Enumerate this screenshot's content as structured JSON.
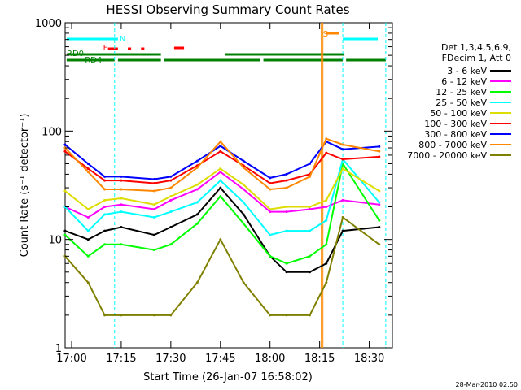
{
  "chart_data": {
    "type": "line",
    "title": "HESSI Observing Summary Count Rates",
    "xlabel": "Start Time (26-Jan-07 16:58:02)",
    "ylabel": "Count Rate (s⁻¹ detector⁻¹)",
    "ylim": [
      1,
      1000
    ],
    "yscale": "log",
    "xlim": [
      "16:58:02",
      "18:37:00"
    ],
    "x_ticks": [
      "17:00",
      "17:15",
      "17:30",
      "17:45",
      "18:00",
      "18:15",
      "18:30"
    ],
    "y_ticks": [
      "1",
      "10",
      "100",
      "1000"
    ],
    "legend_header": [
      "Det 1,3,4,5,6,9,",
      "FDecim 1, Att 0"
    ],
    "legend_placement": "right, outside plot",
    "flags": {
      "N": {
        "label": "N",
        "color": "#00ffff"
      },
      "F": {
        "label": "F",
        "color": "#ff0000"
      },
      "S": {
        "label": "S",
        "color": "#ff8800"
      },
      "RD0": {
        "label": "RD0",
        "color": "#008000"
      },
      "RD4": {
        "label": "RD4",
        "color": "#008000"
      }
    },
    "footer": "28-Mar-2010 02:50",
    "series": [
      {
        "name": "3 - 6 keV",
        "color": "#000000",
        "values": [
          12,
          10,
          12,
          13,
          11,
          13,
          17,
          30,
          17,
          7,
          5,
          5,
          6,
          12,
          13
        ]
      },
      {
        "name": "6 - 12 keV",
        "color": "#ff00ff",
        "values": [
          20,
          16,
          20,
          21,
          19,
          23,
          29,
          42,
          29,
          18,
          18,
          19,
          20,
          23,
          21
        ]
      },
      {
        "name": "12 - 25 keV",
        "color": "#00ff00",
        "values": [
          11,
          7,
          9,
          9,
          8,
          9,
          14,
          25,
          14,
          7,
          6,
          7,
          9,
          50,
          15
        ]
      },
      {
        "name": "25 - 50 keV",
        "color": "#00ffff",
        "values": [
          20,
          12,
          17,
          18,
          16,
          18,
          22,
          35,
          22,
          11,
          12,
          12,
          15,
          55,
          22
        ]
      },
      {
        "name": "50 - 100 keV",
        "color": "#dddd00",
        "values": [
          28,
          19,
          23,
          24,
          21,
          25,
          32,
          45,
          32,
          19,
          20,
          20,
          23,
          45,
          28
        ]
      },
      {
        "name": "100 - 300 keV",
        "color": "#ff0000",
        "values": [
          65,
          45,
          35,
          35,
          33,
          35,
          48,
          65,
          48,
          33,
          35,
          40,
          63,
          55,
          58
        ]
      },
      {
        "name": "300 - 800 keV",
        "color": "#0000ff",
        "values": [
          75,
          50,
          38,
          38,
          36,
          38,
          53,
          73,
          53,
          37,
          40,
          50,
          80,
          68,
          72
        ]
      },
      {
        "name": "800 - 7000 keV",
        "color": "#ff8800",
        "values": [
          70,
          42,
          29,
          29,
          28,
          30,
          46,
          80,
          46,
          29,
          30,
          38,
          85,
          75,
          65
        ]
      },
      {
        "name": "7000 - 20000 keV",
        "color": "#808000",
        "values": [
          7,
          4,
          2,
          2,
          2,
          2,
          4,
          10,
          4,
          2,
          2,
          2,
          4,
          16,
          9
        ]
      }
    ],
    "x": [
      "16:58",
      "17:05",
      "17:10",
      "17:15",
      "17:25",
      "17:30",
      "17:38",
      "17:45",
      "17:52",
      "18:00",
      "18:05",
      "18:12",
      "18:17",
      "18:22",
      "18:33"
    ]
  }
}
